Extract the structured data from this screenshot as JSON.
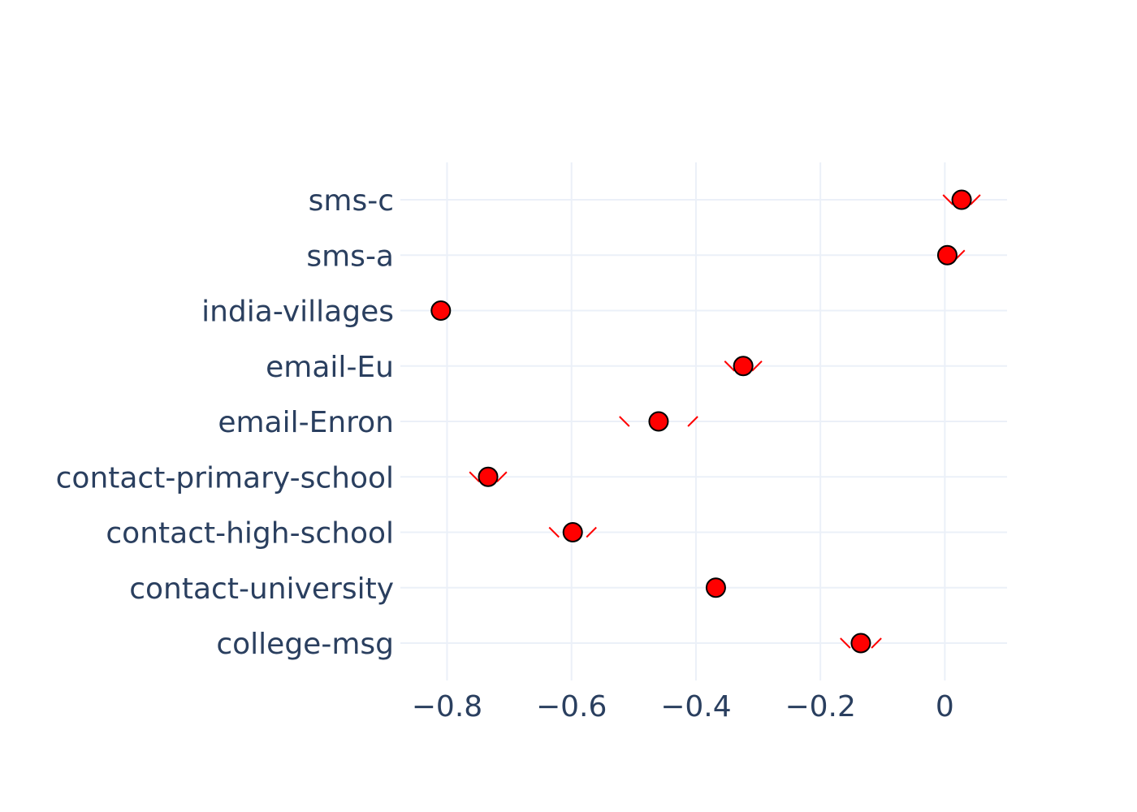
{
  "chart_data": {
    "type": "scatter",
    "orientation": "horizontal-dot-plot",
    "title": "",
    "xlabel": "",
    "ylabel": "",
    "xlim": [
      -0.875,
      0.1
    ],
    "grid": true,
    "x_ticks": [
      -0.8,
      -0.6,
      -0.4,
      -0.2,
      0
    ],
    "x_tick_labels": [
      "−0.8",
      "−0.6",
      "−0.4",
      "−0.2",
      "0"
    ],
    "categories": [
      "college-msg",
      "contact-university",
      "contact-high-school",
      "contact-primary-school",
      "email-Enron",
      "email-Eu",
      "india-villages",
      "sms-a",
      "sms-c"
    ],
    "values": [
      -0.135,
      -0.368,
      -0.598,
      -0.734,
      -0.46,
      -0.324,
      -0.81,
      0.004,
      0.027
    ],
    "error_low": [
      0.025,
      0.0,
      0.03,
      0.022,
      0.055,
      0.022,
      0.0,
      0.0,
      0.022
    ],
    "error_high": [
      0.025,
      0.0,
      0.03,
      0.022,
      0.055,
      0.022,
      0.0,
      0.02,
      0.022
    ],
    "colors": {
      "marker": "#ff0000",
      "marker_outline": "#000000",
      "error_bar": "#ff0000",
      "grid": "#ebf0f8",
      "text": "#2a3f5f"
    }
  }
}
